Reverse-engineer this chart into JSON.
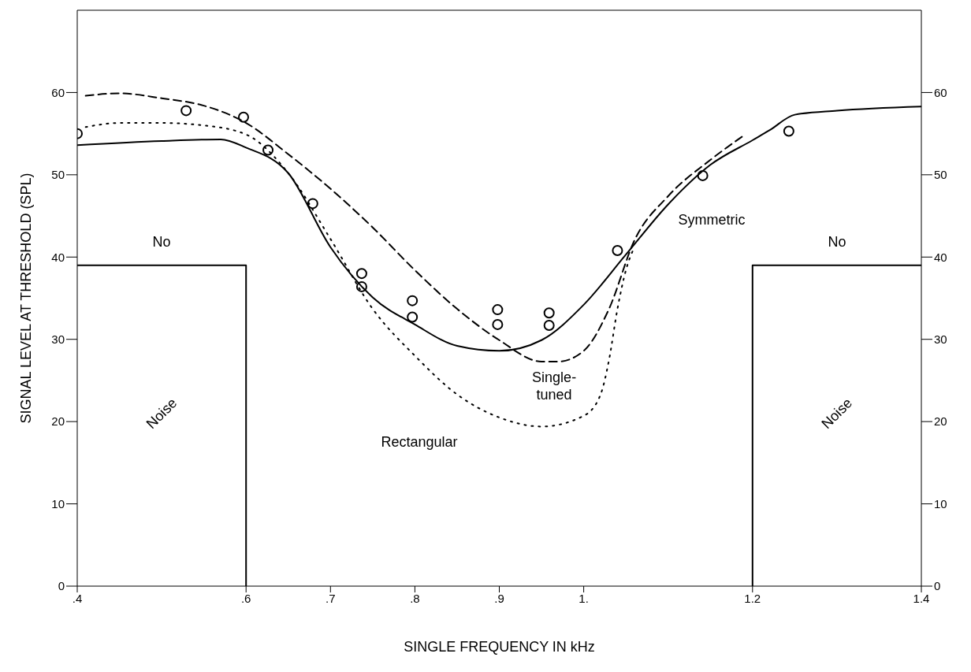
{
  "chart_data": {
    "type": "line",
    "xlabel": "SINGLE FREQUENCY IN kHz",
    "ylabel": "SIGNAL  LEVEL AT THRESHOLD (SPL)",
    "xlim": [
      0.4,
      1.4
    ],
    "xticks": [
      {
        "value": 0.4,
        "label": ".4"
      },
      {
        "value": 0.6,
        "label": ".6"
      },
      {
        "value": 0.7,
        "label": ".7"
      },
      {
        "value": 0.8,
        "label": ".8"
      },
      {
        "value": 0.9,
        "label": ".9"
      },
      {
        "value": 1.0,
        "label": "1."
      },
      {
        "value": 1.2,
        "label": "1.2"
      },
      {
        "value": 1.4,
        "label": "1.4"
      }
    ],
    "ylim": [
      0,
      70
    ],
    "yticks": [
      0,
      10,
      20,
      30,
      40,
      50,
      60
    ],
    "y2lim": [
      0,
      70
    ],
    "y2ticks": [
      0,
      10,
      20,
      30,
      40,
      50,
      60
    ],
    "series": [
      {
        "name": "Symmetric",
        "color": "#000000",
        "line_style": "solid",
        "marker": "none",
        "x": [
          0.4,
          0.5,
          0.57,
          0.6,
          0.65,
          0.7,
          0.75,
          0.8,
          0.85,
          0.9,
          0.95,
          1.0,
          1.05,
          1.1,
          1.15,
          1.2,
          1.22,
          1.25,
          1.3,
          1.4
        ],
        "values": [
          53.6,
          54.1,
          54.3,
          53.3,
          50.2,
          41.2,
          35.1,
          31.8,
          29.2,
          28.6,
          29.9,
          34.2,
          40.3,
          46.4,
          51.2,
          54.2,
          55.4,
          57.3,
          57.8,
          58.3
        ]
      },
      {
        "name": "Single-\ntuned",
        "color": "#000000",
        "line_style": "dashed",
        "marker": "none",
        "x": [
          0.41,
          0.45,
          0.5,
          0.55,
          0.6,
          0.65,
          0.7,
          0.75,
          0.8,
          0.85,
          0.9,
          0.95,
          0.97,
          1.0,
          1.03,
          1.06,
          1.1,
          1.15,
          1.19
        ],
        "values": [
          59.6,
          59.9,
          59.3,
          58.4,
          56.3,
          52.5,
          48.3,
          43.6,
          38.4,
          33.7,
          29.9,
          27.3,
          27.3,
          28.6,
          33.7,
          42.0,
          47.4,
          51.8,
          54.8
        ]
      },
      {
        "name": "Rectangular",
        "color": "#000000",
        "line_style": "dotted",
        "marker": "none",
        "x": [
          0.41,
          0.45,
          0.5,
          0.55,
          0.6,
          0.65,
          0.7,
          0.75,
          0.8,
          0.85,
          0.9,
          0.95,
          1.0,
          1.02,
          1.03,
          1.04,
          1.05,
          1.06
        ],
        "values": [
          55.8,
          56.3,
          56.3,
          56.0,
          54.9,
          50.2,
          42.2,
          33.7,
          28.0,
          23.3,
          20.5,
          19.4,
          20.7,
          23.3,
          27.5,
          33.7,
          38.4,
          41.2
        ]
      },
      {
        "type": "scatter",
        "color": "#000000",
        "marker": "circle",
        "x": [
          0.4,
          0.529,
          0.597,
          0.626,
          0.679,
          0.737,
          0.737,
          0.797,
          0.797,
          0.898,
          0.898,
          0.959,
          0.959,
          1.04,
          1.141,
          1.243
        ],
        "values": [
          55,
          57.8,
          57,
          53,
          46.5,
          38,
          36.4,
          34.7,
          32.7,
          33.6,
          31.8,
          33.2,
          31.7,
          40.8,
          49.9,
          55.3
        ]
      },
      {
        "color": "#000000",
        "line_style": "solid",
        "marker": "none",
        "x": [
          0.4,
          0.6,
          0.6
        ],
        "values": [
          39,
          39,
          0
        ]
      },
      {
        "color": "#000000",
        "line_style": "solid",
        "marker": "none",
        "x": [
          1.2,
          1.2,
          1.4
        ],
        "values": [
          0,
          39,
          39
        ]
      }
    ],
    "annotations": [
      "No",
      "Noise",
      "No",
      "Noise"
    ]
  }
}
